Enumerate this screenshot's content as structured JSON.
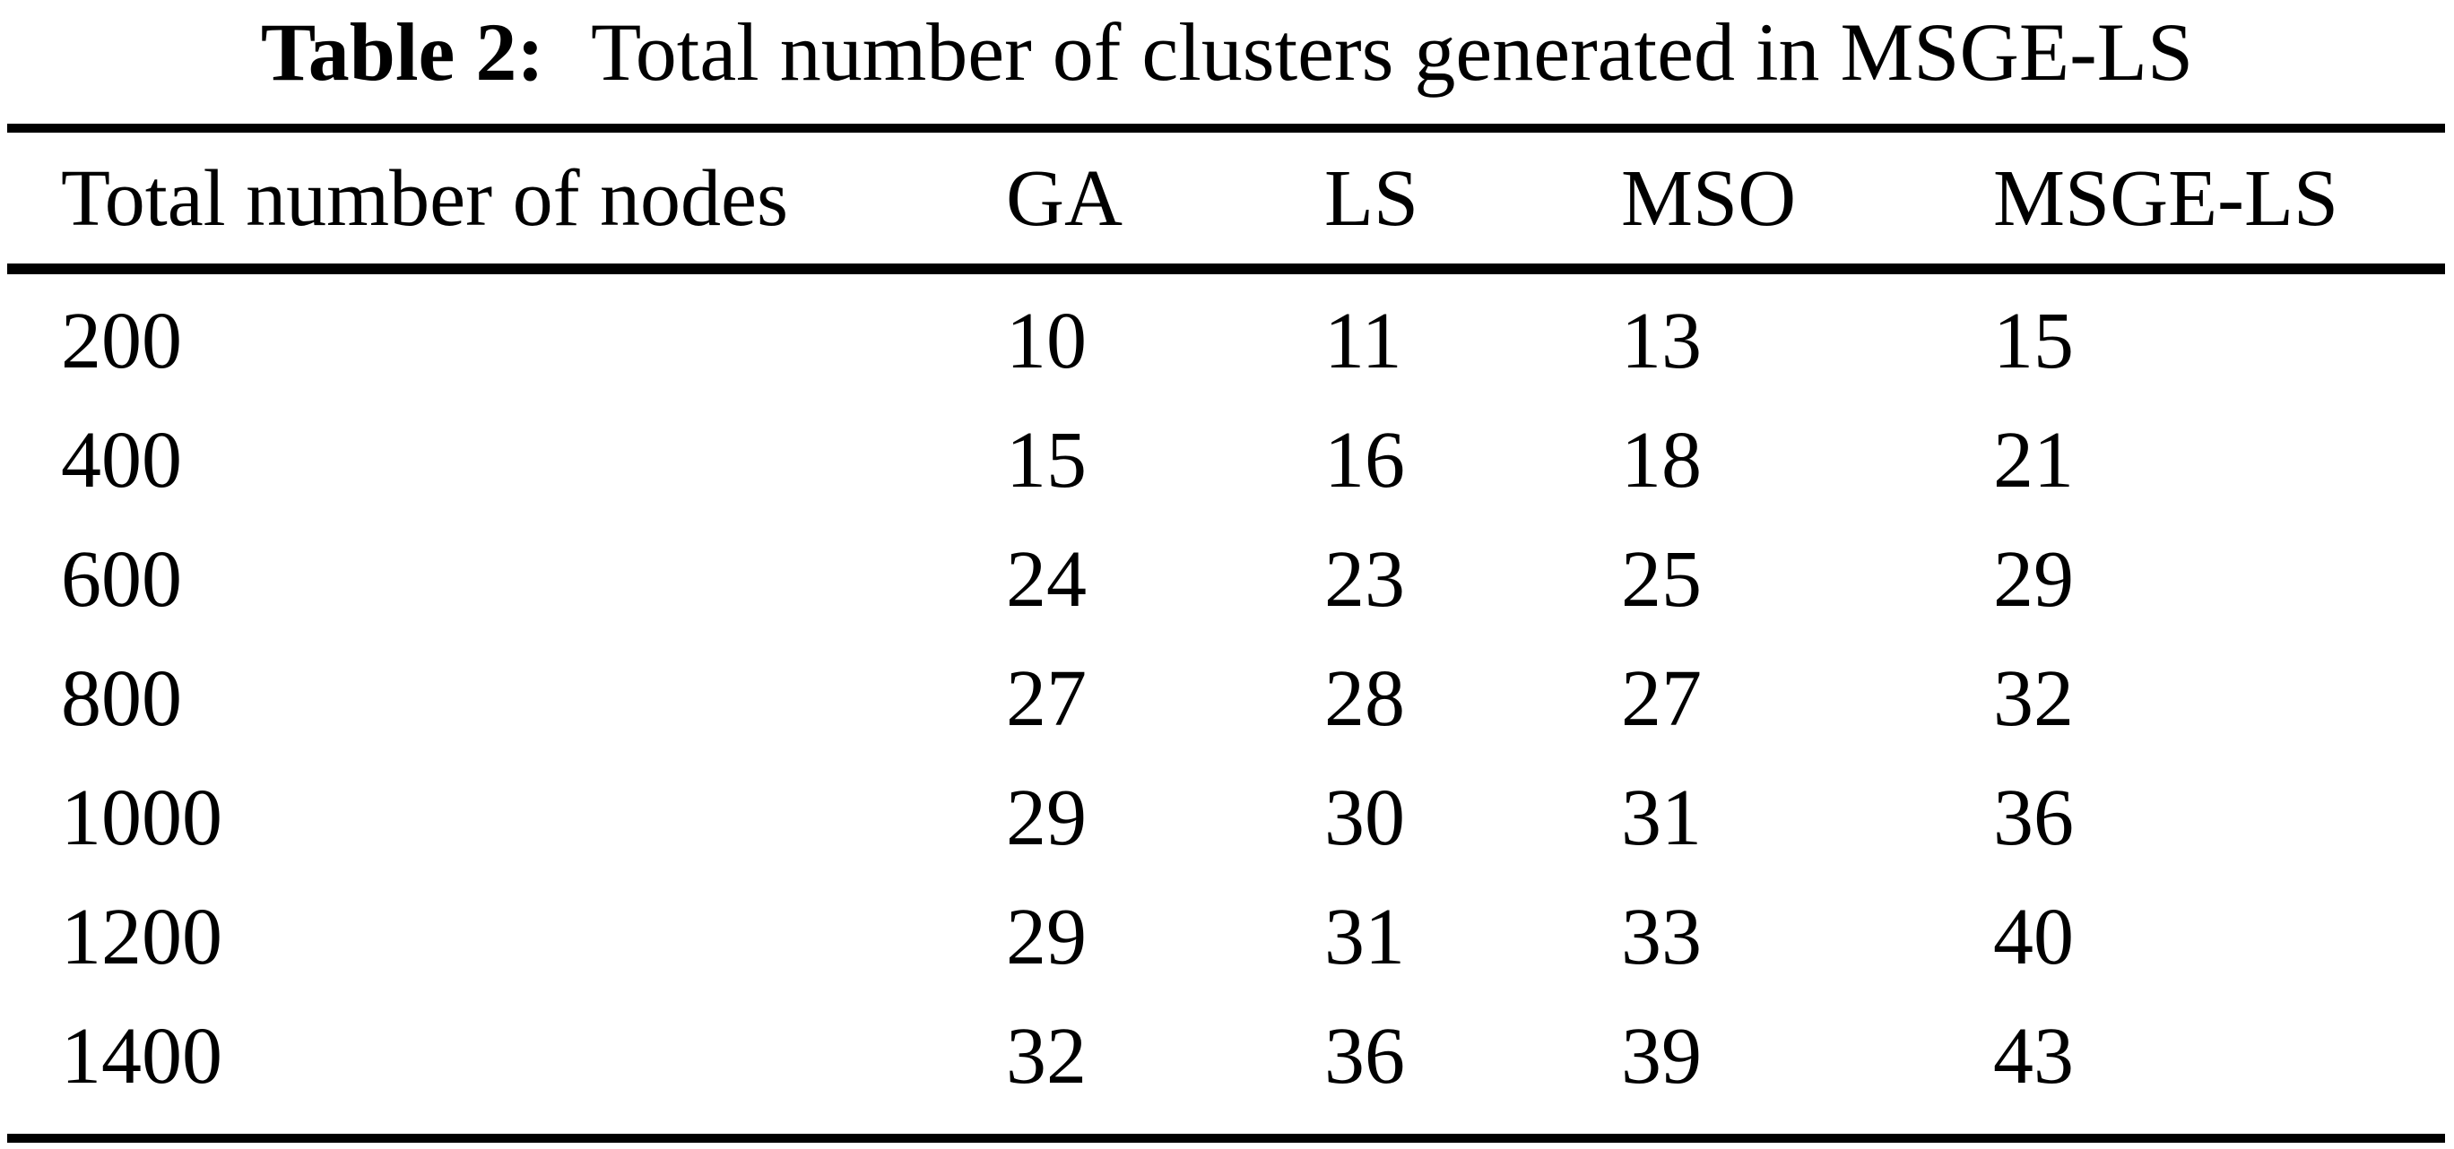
{
  "caption": {
    "label": "Table 2:",
    "text": "Total number of clusters generated in MSGE-LS"
  },
  "table": {
    "columns": [
      "Total number of nodes",
      "GA",
      "LS",
      "MSO",
      "MSGE-LS"
    ],
    "rows": [
      [
        "200",
        "10",
        "11",
        "13",
        "15"
      ],
      [
        "400",
        "15",
        "16",
        "18",
        "21"
      ],
      [
        "600",
        "24",
        "23",
        "25",
        "29"
      ],
      [
        "800",
        "27",
        "28",
        "27",
        "32"
      ],
      [
        "1000",
        "29",
        "30",
        "31",
        "36"
      ],
      [
        "1200",
        "29",
        "31",
        "33",
        "40"
      ],
      [
        "1400",
        "32",
        "36",
        "39",
        "43"
      ]
    ]
  },
  "colors": {
    "text": "#000000",
    "background": "#ffffff",
    "rule": "#000000"
  }
}
